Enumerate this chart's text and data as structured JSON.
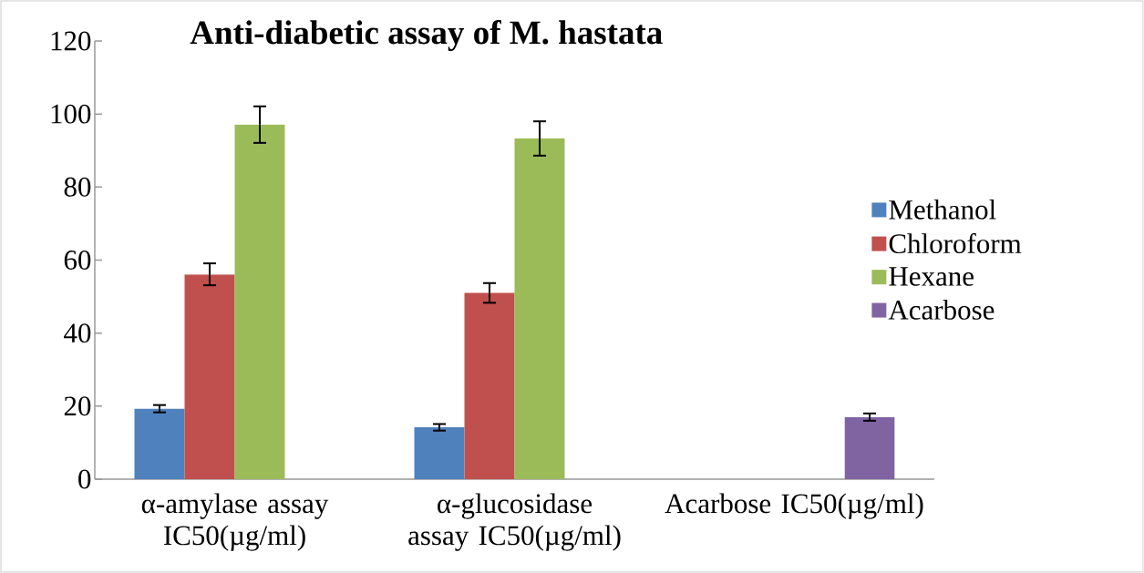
{
  "chart_data": {
    "type": "bar",
    "title": "Anti-diabetic assay of M. hastata",
    "categories": [
      "α-amylase assay IC50(µg/ml)",
      "α-glucosidase assay IC50(µg/ml)",
      "Acarbose IC50(µg/ml)"
    ],
    "series": [
      {
        "name": "Methanol",
        "color": "#4f81bd",
        "values": [
          19.3,
          14.2,
          null
        ],
        "errors": [
          1.0,
          0.9,
          null
        ]
      },
      {
        "name": "Chloroform",
        "color": "#c0504d",
        "values": [
          56.1,
          51.0,
          null
        ],
        "errors": [
          3.0,
          2.7,
          null
        ]
      },
      {
        "name": "Hexane",
        "color": "#9bbb59",
        "values": [
          97.1,
          93.3,
          null
        ],
        "errors": [
          5.0,
          4.7,
          null
        ]
      },
      {
        "name": "Acarbose",
        "color": "#8064a2",
        "values": [
          null,
          null,
          17.0
        ],
        "errors": [
          null,
          null,
          1.0
        ]
      }
    ],
    "ylim": [
      0,
      120
    ],
    "yticks": [
      0,
      20,
      40,
      60,
      80,
      100,
      120
    ],
    "legend": "right"
  }
}
